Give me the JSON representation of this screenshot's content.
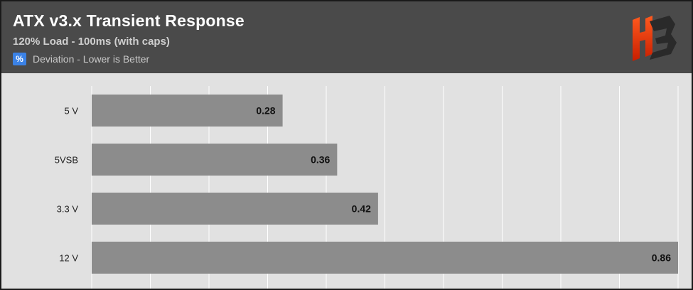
{
  "header": {
    "title": "ATX v3.x Transient Response",
    "subtitle": "120% Load - 100ms (with caps)",
    "legend": {
      "symbol": "%",
      "label": "Deviation - Lower is Better",
      "color": "#3b82e6"
    },
    "logo_icon": "hb-logo-icon"
  },
  "chart_data": {
    "type": "bar",
    "orientation": "horizontal",
    "title": "ATX v3.x Transient Response",
    "subtitle": "120% Load - 100ms (with caps)",
    "categories": [
      "5 V",
      "5VSB",
      "3.3 V",
      "12 V"
    ],
    "series": [
      {
        "name": "Deviation - Lower is Better",
        "values": [
          0.28,
          0.36,
          0.42,
          0.86
        ]
      }
    ],
    "value_labels": [
      "0.28",
      "0.36",
      "0.42",
      "0.86"
    ],
    "xlim": [
      0,
      0.86
    ],
    "grid": true,
    "bar_color": "#8c8c8c",
    "background": "#e1e1e1"
  }
}
